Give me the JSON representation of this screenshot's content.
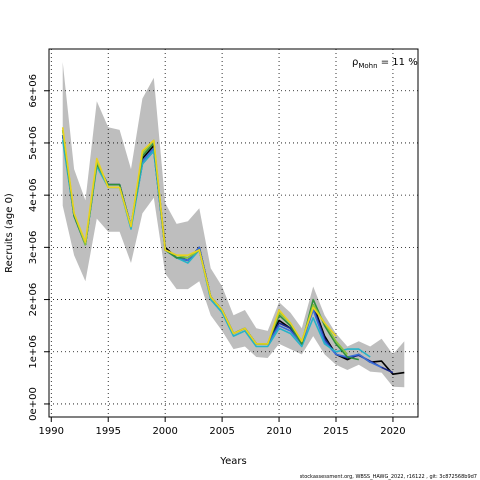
{
  "chart_data": {
    "type": "line",
    "xlabel": "Years",
    "ylabel": "Recruits (age 0)",
    "xlim": [
      1989.8,
      2022.2
    ],
    "ylim": [
      -250000,
      6800000
    ],
    "xticks": [
      1990,
      1995,
      2000,
      2005,
      2010,
      2015,
      2020
    ],
    "yticks": [
      0,
      1000000,
      2000000,
      3000000,
      4000000,
      5000000,
      6000000
    ],
    "ytick_labels": [
      "0e+00",
      "1e+06",
      "2e+06",
      "3e+06",
      "4e+06",
      "5e+06",
      "6e+06"
    ],
    "grid": true,
    "grid_style": "dotted",
    "annotation": {
      "symbol": "ρ",
      "subscript": "Mohn",
      "text": " = 11 %"
    },
    "footer": "stockassessment.org, WBSS_HAWG_2022, r16122 , git: 3c872568b9d7",
    "band": {
      "color": "#bebebe",
      "x": [
        1991,
        1992,
        1993,
        1994,
        1995,
        1996,
        1997,
        1998,
        1999,
        2000,
        2001,
        2002,
        2003,
        2004,
        2005,
        2006,
        2007,
        2008,
        2009,
        2010,
        2011,
        2012,
        2013,
        2014,
        2015,
        2016,
        2017,
        2018,
        2019,
        2020,
        2021
      ],
      "upper": [
        6550000,
        4500000,
        3900000,
        5800000,
        5300000,
        5250000,
        4500000,
        5850000,
        6250000,
        3850000,
        3450000,
        3500000,
        3750000,
        2600000,
        2250000,
        1700000,
        1800000,
        1450000,
        1400000,
        1950000,
        1750000,
        1450000,
        2250000,
        1700000,
        1350000,
        1100000,
        1200000,
        1100000,
        1250000,
        950000,
        1200000
      ],
      "lower": [
        3800000,
        2850000,
        2350000,
        3550000,
        3300000,
        3300000,
        2700000,
        3650000,
        3950000,
        2500000,
        2200000,
        2200000,
        2350000,
        1700000,
        1400000,
        1050000,
        1100000,
        900000,
        880000,
        1150000,
        1050000,
        950000,
        1300000,
        950000,
        750000,
        650000,
        750000,
        620000,
        600000,
        330000,
        320000
      ]
    },
    "series": [
      {
        "color": "#000000",
        "x": [
          1991,
          1992,
          1993,
          1994,
          1995,
          1996,
          1997,
          1998,
          1999,
          2000,
          2001,
          2002,
          2003,
          2004,
          2005,
          2006,
          2007,
          2008,
          2009,
          2010,
          2011,
          2012,
          2013,
          2014,
          2015,
          2016,
          2017,
          2018,
          2019,
          2020,
          2021
        ],
        "y": [
          5150000,
          3600000,
          3050000,
          4600000,
          4200000,
          4200000,
          3400000,
          4700000,
          4950000,
          3000000,
          2800000,
          2750000,
          3000000,
          2050000,
          1800000,
          1350000,
          1450000,
          1150000,
          1150000,
          1600000,
          1450000,
          1150000,
          1900000,
          1300000,
          950000,
          850000,
          950000,
          800000,
          820000,
          570000,
          600000
        ]
      },
      {
        "color": "#1b2a8c",
        "x": [
          1991,
          1992,
          1993,
          1994,
          1995,
          1996,
          1997,
          1998,
          1999,
          2000,
          2001,
          2002,
          2003,
          2004,
          2005,
          2006,
          2007,
          2008,
          2009,
          2010,
          2011,
          2012,
          2013,
          2014,
          2015,
          2016,
          2017,
          2018,
          2019,
          2020
        ],
        "y": [
          5150000,
          3600000,
          3050000,
          4600000,
          4200000,
          4200000,
          3400000,
          4600000,
          4850000,
          2950000,
          2800000,
          2750000,
          3000000,
          2050000,
          1800000,
          1350000,
          1450000,
          1150000,
          1150000,
          1550000,
          1450000,
          1150000,
          1850000,
          1250000,
          950000,
          880000,
          930000,
          820000,
          700000,
          600000
        ]
      },
      {
        "color": "#3a6fd8",
        "x": [
          1991,
          1992,
          1993,
          1994,
          1995,
          1996,
          1997,
          1998,
          1999,
          2000,
          2001,
          2002,
          2003,
          2004,
          2005,
          2006,
          2007,
          2008,
          2009,
          2010,
          2011,
          2012,
          2013,
          2014,
          2015,
          2016,
          2017,
          2018,
          2019
        ],
        "y": [
          5150000,
          3600000,
          3050000,
          4600000,
          4200000,
          4200000,
          3400000,
          4650000,
          4900000,
          2950000,
          2800000,
          2750000,
          3000000,
          2050000,
          1800000,
          1350000,
          1450000,
          1150000,
          1150000,
          1500000,
          1400000,
          1150000,
          1800000,
          1200000,
          950000,
          900000,
          950000,
          800000,
          700000
        ]
      },
      {
        "color": "#26b3c8",
        "x": [
          1991,
          1992,
          1993,
          1994,
          1995,
          1996,
          1997,
          1998,
          1999,
          2000,
          2001,
          2002,
          2003,
          2004,
          2005,
          2006,
          2007,
          2008,
          2009,
          2010,
          2011,
          2012,
          2013,
          2014,
          2015,
          2016,
          2017,
          2018
        ],
        "y": [
          5050000,
          3600000,
          3050000,
          4550000,
          4150000,
          4150000,
          3350000,
          4600000,
          4850000,
          2950000,
          2800000,
          2700000,
          2950000,
          2000000,
          1750000,
          1300000,
          1400000,
          1100000,
          1100000,
          1450000,
          1350000,
          1100000,
          1650000,
          1150000,
          1000000,
          1050000,
          1050000,
          900000
        ]
      },
      {
        "color": "#2f8f3c",
        "x": [
          1991,
          1992,
          1993,
          1994,
          1995,
          1996,
          1997,
          1998,
          1999,
          2000,
          2001,
          2002,
          2003,
          2004,
          2005,
          2006,
          2007,
          2008,
          2009,
          2010,
          2011,
          2012,
          2013,
          2014,
          2015,
          2016,
          2017
        ],
        "y": [
          5250000,
          3600000,
          3050000,
          4600000,
          4200000,
          4200000,
          3400000,
          4750000,
          5000000,
          2950000,
          2800000,
          2800000,
          2950000,
          2050000,
          1800000,
          1350000,
          1450000,
          1150000,
          1150000,
          1700000,
          1500000,
          1150000,
          2000000,
          1500000,
          1150000,
          900000,
          850000
        ]
      },
      {
        "color": "#8cc43c",
        "x": [
          1991,
          1992,
          1993,
          1994,
          1995,
          1996,
          1997,
          1998,
          1999,
          2000,
          2001,
          2002,
          2003,
          2004,
          2005,
          2006,
          2007,
          2008,
          2009,
          2010,
          2011,
          2012,
          2013,
          2014,
          2015,
          2016
        ],
        "y": [
          5250000,
          3650000,
          3050000,
          4650000,
          4150000,
          4150000,
          3400000,
          4800000,
          5050000,
          2950000,
          2850000,
          2800000,
          2950000,
          2050000,
          1800000,
          1350000,
          1450000,
          1150000,
          1150000,
          1750000,
          1550000,
          1200000,
          1900000,
          1550000,
          1200000,
          950000
        ]
      },
      {
        "color": "#e8d21e",
        "x": [
          1991,
          1992,
          1993,
          1994,
          1995,
          1996,
          1997,
          1998,
          1999,
          2000,
          2001,
          2002,
          2003,
          2004,
          2005,
          2006,
          2007,
          2008,
          2009,
          2010,
          2011,
          2012,
          2013,
          2014,
          2015
        ],
        "y": [
          5300000,
          3650000,
          3100000,
          4700000,
          4150000,
          4150000,
          3400000,
          4850000,
          5050000,
          2950000,
          2850000,
          2850000,
          2950000,
          2050000,
          1800000,
          1350000,
          1450000,
          1150000,
          1150000,
          1800000,
          1550000,
          1200000,
          1850000,
          1550000,
          1300000
        ]
      }
    ]
  }
}
